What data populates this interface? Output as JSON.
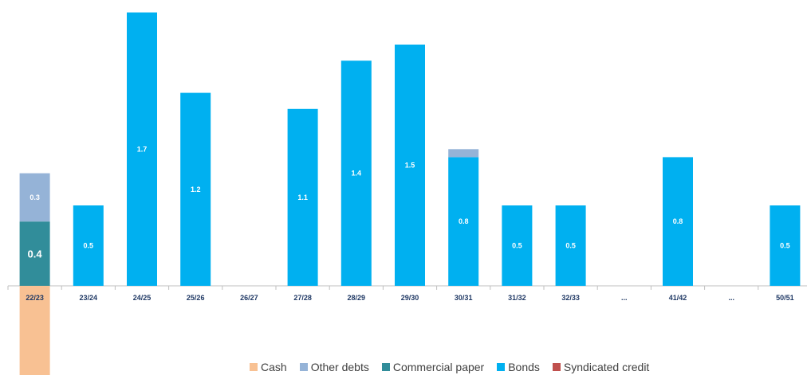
{
  "chart_data": {
    "type": "bar",
    "stacked": true,
    "categories": [
      "22/23",
      "23/24",
      "24/25",
      "25/26",
      "26/27",
      "27/28",
      "28/29",
      "29/30",
      "30/31",
      "31/32",
      "32/33",
      "...",
      "41/42",
      "...",
      "50/51"
    ],
    "series": [
      {
        "name": "Cash",
        "color": "#F8C193",
        "direction": "negative",
        "values": [
          0.6,
          0,
          0,
          0,
          0,
          0,
          0,
          0,
          0,
          0,
          0,
          0,
          0,
          0,
          0
        ],
        "labels": [
          "",
          "",
          "",
          "",
          "",
          "",
          "",
          "",
          "",
          "",
          "",
          "",
          "",
          "",
          ""
        ]
      },
      {
        "name": "Commercial paper",
        "color": "#318D9A",
        "direction": "positive",
        "values": [
          0.4,
          0,
          0,
          0,
          0,
          0,
          0,
          0,
          0,
          0,
          0,
          0,
          0,
          0,
          0
        ],
        "labels": [
          "0.4",
          "",
          "",
          "",
          "",
          "",
          "",
          "",
          "",
          "",
          "",
          "",
          "",
          "",
          ""
        ]
      },
      {
        "name": "Bonds",
        "color": "#00B0F0",
        "direction": "positive",
        "values": [
          0,
          0.5,
          1.7,
          1.2,
          0,
          1.1,
          1.4,
          1.5,
          0.8,
          0.5,
          0.5,
          0,
          0.8,
          0,
          0.5
        ],
        "labels": [
          "",
          "0.5",
          "1.7",
          "1.2",
          "",
          "1.1",
          "1.4",
          "1.5",
          "0.8",
          "0.5",
          "0.5",
          "",
          "0.8",
          "",
          "0.5"
        ]
      },
      {
        "name": "Other debts",
        "color": "#95B3D7",
        "direction": "positive",
        "values": [
          0.3,
          0,
          0,
          0,
          0,
          0,
          0,
          0,
          0.05,
          0,
          0,
          0,
          0,
          0,
          0
        ],
        "labels": [
          "0.3",
          "",
          "",
          "",
          "",
          "",
          "",
          "",
          "",
          "",
          "",
          "",
          "",
          "",
          ""
        ]
      },
      {
        "name": "Syndicated credit",
        "color": "#C0504D",
        "direction": "positive",
        "values": [
          0,
          0,
          0,
          0,
          0,
          0,
          0,
          0,
          0,
          0,
          0,
          0,
          0,
          0,
          0
        ],
        "labels": [
          "",
          "",
          "",
          "",
          "",
          "",
          "",
          "",
          "",
          "",
          "",
          "",
          "",
          "",
          ""
        ]
      }
    ],
    "legend_order": [
      "Cash",
      "Other debts",
      "Commercial paper",
      "Bonds",
      "Syndicated credit"
    ],
    "legend_position": "bottom",
    "ylim": [
      -0.6,
      1.7
    ],
    "grid": false,
    "title": "",
    "xlabel": "",
    "ylabel": ""
  }
}
